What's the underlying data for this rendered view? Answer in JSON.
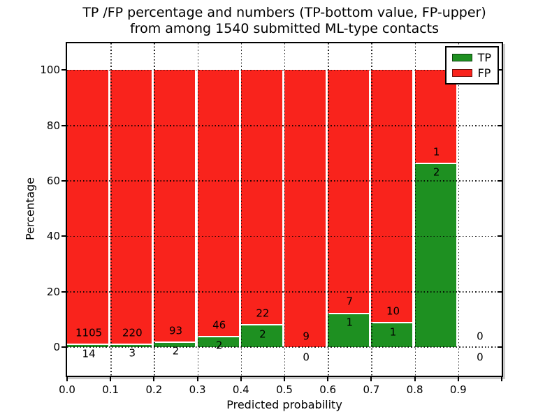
{
  "title": {
    "line1": "TP /FP percentage and numbers (TP-bottom value, FP-upper)",
    "line2": "from among 1540 submitted ML-type contacts"
  },
  "axes": {
    "xlabel": "Predicted probability",
    "ylabel": "Percentage"
  },
  "legend": {
    "items": [
      {
        "label": "TP",
        "color": "#1e9021"
      },
      {
        "label": "FP",
        "color": "#f9231c"
      }
    ]
  },
  "chart_data": {
    "type": "bar",
    "stacked": true,
    "normalized_to_percent": true,
    "title": "TP /FP percentage and numbers (TP-bottom value, FP-upper) from among 1540 submitted ML-type contacts",
    "xlabel": "Predicted probability",
    "ylabel": "Percentage",
    "total_contacts": 1540,
    "bin_edges": [
      0.0,
      0.1,
      0.2,
      0.3,
      0.4,
      0.5,
      0.6,
      0.7,
      0.8,
      0.9,
      1.0
    ],
    "series": [
      {
        "name": "TP",
        "color": "#1e9021",
        "counts": [
          14,
          3,
          2,
          2,
          2,
          0,
          1,
          1,
          2,
          0
        ]
      },
      {
        "name": "FP",
        "color": "#f9231c",
        "counts": [
          1105,
          220,
          93,
          46,
          22,
          9,
          7,
          10,
          1,
          0
        ]
      }
    ],
    "tp_percent": [
      1.25,
      1.35,
      2.11,
      4.17,
      8.33,
      0.0,
      12.5,
      9.09,
      66.67,
      null
    ],
    "bar_width_fraction": 0.95,
    "xlim": [
      0.0,
      1.0
    ],
    "ylim": [
      -10.3,
      109.7
    ],
    "yticks": [
      0,
      20,
      40,
      60,
      80,
      100
    ],
    "xticks": [
      0.0,
      0.1,
      0.2,
      0.3,
      0.4,
      0.5,
      0.6,
      0.7,
      0.8,
      0.9,
      1.0
    ],
    "xtick_labels": [
      "0.0",
      "0.1",
      "0.2",
      "0.3",
      "0.4",
      "0.5",
      "0.6",
      "0.7",
      "0.8",
      "0.9",
      ""
    ],
    "grid_style": "dotted",
    "legend_position": "upper right",
    "annotation_rule": "FP count printed just above the TP/FP boundary, TP count just below it"
  }
}
